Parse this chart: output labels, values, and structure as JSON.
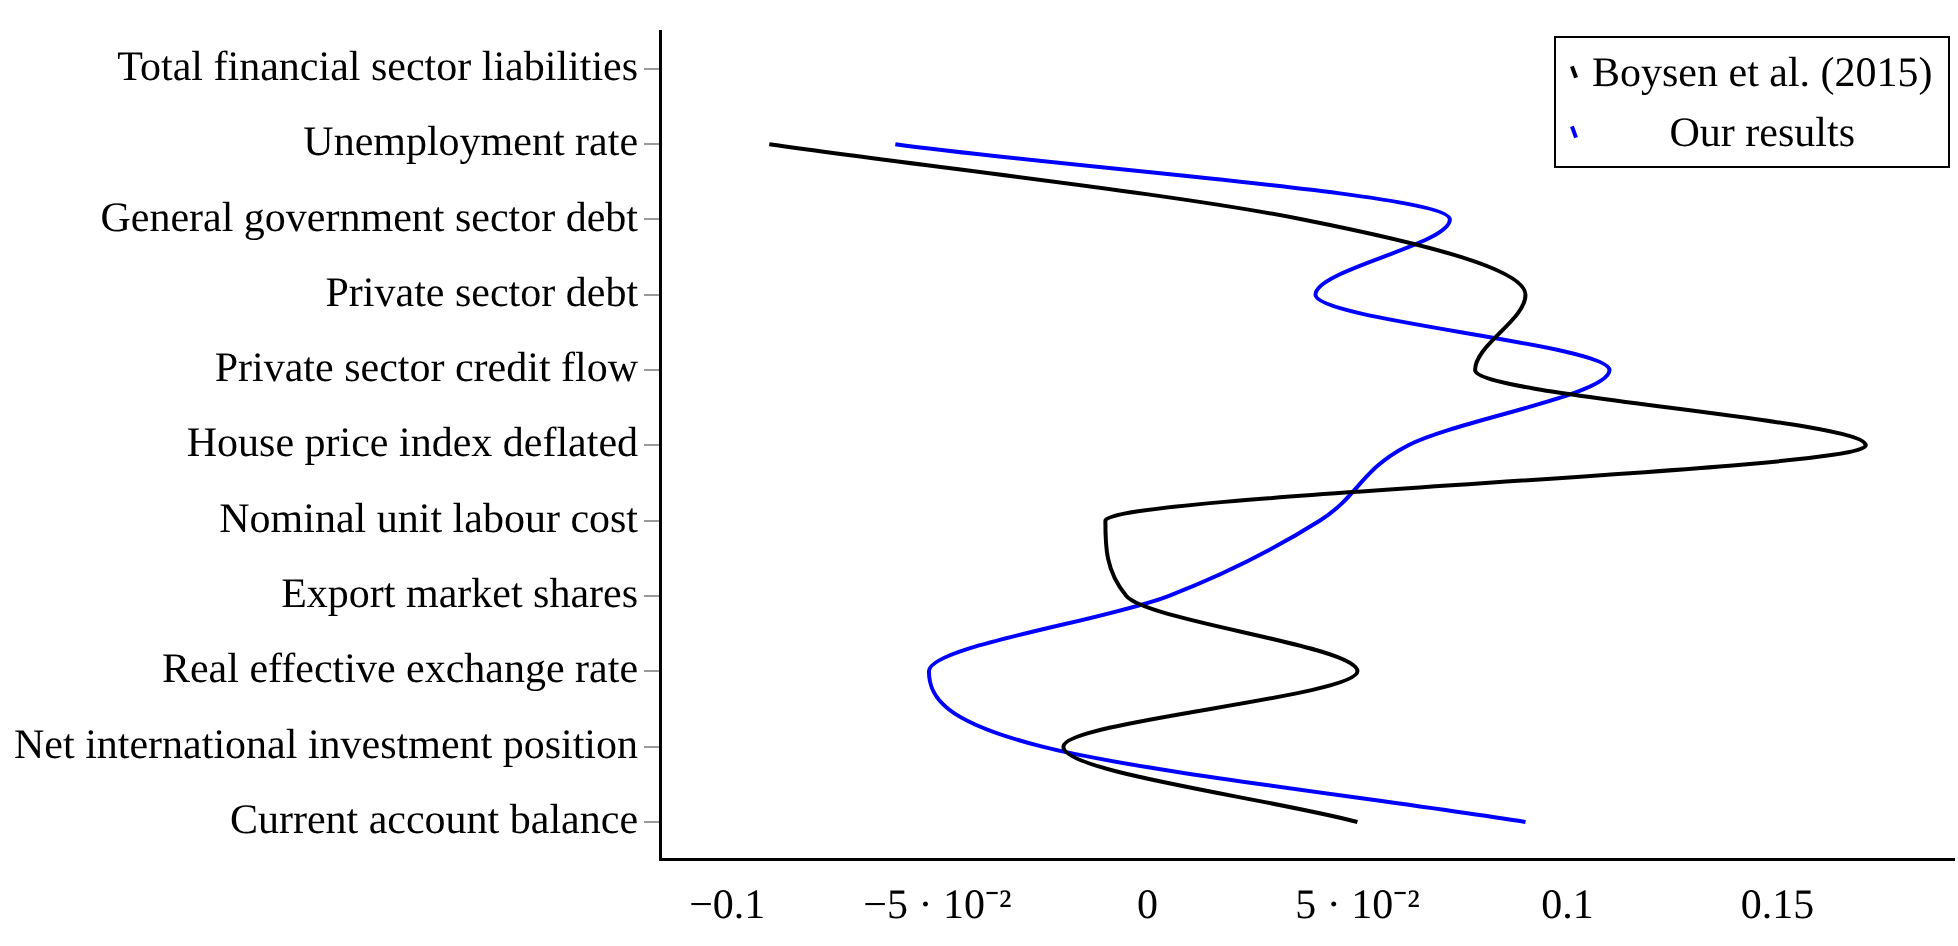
{
  "chart_data": {
    "type": "line",
    "orientation": "horizontal",
    "categories": [
      "Total financial sector liabilities",
      "Unemployment rate",
      "General government sector debt",
      "Private sector debt",
      "Private sector credit flow",
      "House price index deflated",
      "Nominal unit labour cost",
      "Export market shares",
      "Real effective exchange rate",
      "Net international investment position",
      "Current account balance"
    ],
    "series": [
      {
        "name": "Boysen et al. (2015)",
        "color": "#000000",
        "values": [
          null,
          -0.09,
          0.037,
          0.09,
          0.078,
          0.171,
          -0.01,
          -0.005,
          0.05,
          -0.02,
          0.05
        ]
      },
      {
        "name": "Our results",
        "color": "#0000ff",
        "values": [
          null,
          -0.06,
          0.072,
          0.04,
          0.11,
          0.062,
          0.041,
          0.005,
          -0.052,
          -0.025,
          0.09
        ]
      }
    ],
    "xlim": [
      -0.116,
      0.192
    ],
    "xticks": [
      {
        "value": -0.1,
        "label": "−0.1"
      },
      {
        "value": -0.05,
        "label": "−5 · 10⁻²"
      },
      0,
      {
        "value": 0.05,
        "label": "5 · 10⁻²"
      },
      0.1,
      0.15
    ],
    "grid": false,
    "legend": "top right",
    "marker": "none",
    "line_style": "solid"
  }
}
